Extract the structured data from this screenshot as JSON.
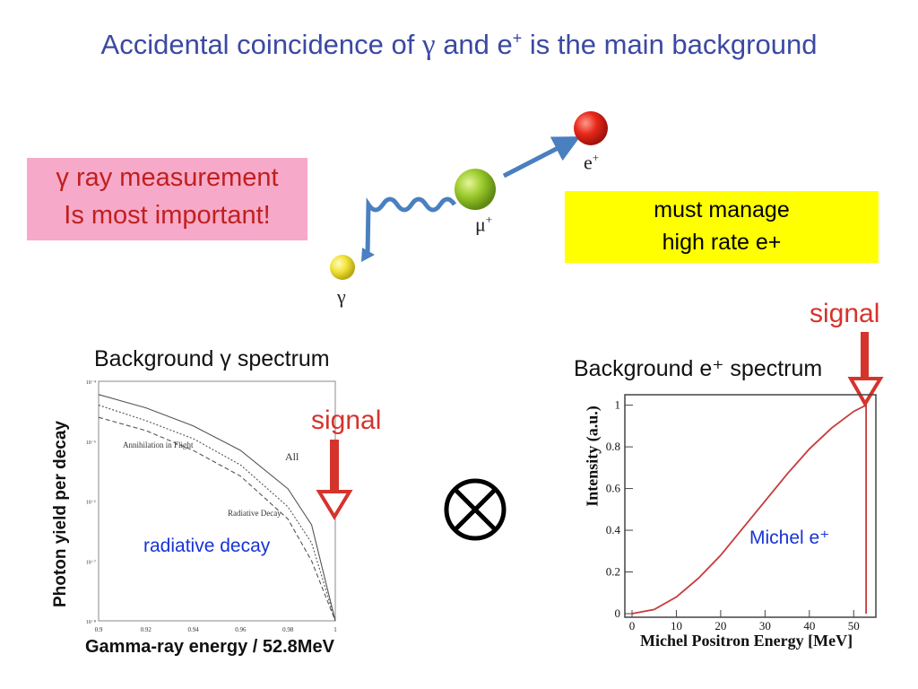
{
  "title": {
    "pre": "Accidental coincidence of ",
    "gamma": "γ",
    "post": " and e",
    "sup": "+",
    "end": " is the main background"
  },
  "pink_box": {
    "line1": "γ ray measurement",
    "line2": "Is most important!"
  },
  "yellow_box": {
    "line1": "must manage",
    "line2": "high rate e+"
  },
  "particles": {
    "positron": "e",
    "positron_sup": "+",
    "muon": "μ",
    "muon_sup": "+",
    "gamma": "γ"
  },
  "colors": {
    "title": "#3b49a3",
    "signal": "#d5342c",
    "arrow": "#4a7fc0",
    "annotation": "#1733d6",
    "michel_curve": "#c83a3a"
  },
  "left_plot": {
    "title": "Background γ spectrum",
    "ylabel": "Photon yield per decay",
    "xlabel": "Gamma-ray energy / 52.8MeV",
    "annihilation_label": "Annihilation in Flight",
    "all_label": "All",
    "radiative_label": "Radiative Decay",
    "signal": "signal",
    "overlay_note": "radiative decay"
  },
  "right_plot": {
    "title": "Background e⁺ spectrum",
    "ylabel": "Intensity (a.u.)",
    "xlabel": "Michel Positron Energy [MeV]",
    "signal": "signal",
    "overlay_note": "Michel e⁺"
  },
  "operator": "⊗",
  "chart_data": [
    {
      "type": "line",
      "title": "Background γ spectrum",
      "xlabel": "Gamma-ray energy / 52.8MeV",
      "ylabel": "Photon yield per decay",
      "xlim": [
        0.9,
        1.0
      ],
      "ylim": [
        1e-08,
        0.0001
      ],
      "yscale": "log",
      "x_ticks": [
        "0.9",
        "0.92",
        "0.94",
        "0.96",
        "0.98",
        "1"
      ],
      "y_ticks": [
        "10⁻⁴",
        "10⁻⁵",
        "10⁻⁶",
        "10⁻⁷",
        "10⁻⁸"
      ],
      "x": [
        0.9,
        0.92,
        0.94,
        0.96,
        0.98,
        0.99,
        1.0
      ],
      "series": [
        {
          "name": "All",
          "values": [
            6e-05,
            3.6e-05,
            1.8e-05,
            7e-06,
            1.6e-06,
            4e-07,
            1e-08
          ]
        },
        {
          "name": "Annihilation in Flight",
          "values": [
            4e-05,
            2.2e-05,
            1.1e-05,
            4e-06,
            8e-07,
            2e-07,
            1e-08
          ]
        },
        {
          "name": "Radiative Decay",
          "values": [
            2.5e-05,
            1.5e-05,
            7e-06,
            2.6e-06,
            5e-07,
            1e-07,
            1e-08
          ]
        }
      ]
    },
    {
      "type": "line",
      "title": "Background e⁺ spectrum",
      "xlabel": "Michel Positron Energy [MeV]",
      "ylabel": "Intensity (a.u.)",
      "xlim": [
        0,
        55
      ],
      "ylim": [
        0,
        1.05
      ],
      "x_ticks": [
        "0",
        "10",
        "20",
        "30",
        "40",
        "50"
      ],
      "y_ticks": [
        "0",
        "0.2",
        "0.4",
        "0.6",
        "0.8",
        "1"
      ],
      "x": [
        0,
        5,
        10,
        15,
        20,
        25,
        30,
        35,
        40,
        45,
        50,
        52.8
      ],
      "series": [
        {
          "name": "Michel e⁺",
          "values": [
            0,
            0.02,
            0.08,
            0.17,
            0.28,
            0.41,
            0.54,
            0.67,
            0.79,
            0.89,
            0.97,
            1.0
          ]
        }
      ]
    }
  ]
}
